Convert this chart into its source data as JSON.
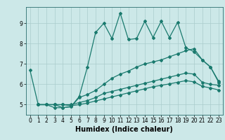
{
  "xlabel": "Humidex (Indice chaleur)",
  "ylabel": "",
  "xlim": [
    -0.5,
    23.5
  ],
  "ylim": [
    4.5,
    9.8
  ],
  "bg_color": "#cce8e8",
  "grid_color": "#aacccc",
  "line_color": "#1a7a6e",
  "xticks": [
    0,
    1,
    2,
    3,
    4,
    5,
    6,
    7,
    8,
    9,
    10,
    11,
    12,
    13,
    14,
    15,
    16,
    17,
    18,
    19,
    20,
    21,
    22,
    23
  ],
  "yticks": [
    5,
    6,
    7,
    8,
    9
  ],
  "line1_x": [
    0,
    1,
    2,
    3,
    4,
    5,
    6,
    7,
    8,
    9,
    10,
    11,
    12,
    13,
    14,
    15,
    16,
    17,
    18,
    19,
    20,
    21,
    22,
    23
  ],
  "line1_y": [
    6.7,
    5.0,
    5.0,
    4.85,
    4.85,
    4.9,
    5.4,
    6.85,
    8.55,
    9.0,
    8.25,
    9.5,
    8.2,
    8.25,
    9.1,
    8.3,
    9.1,
    8.3,
    9.05,
    7.8,
    7.6,
    7.2,
    6.85,
    6.15
  ],
  "line2_x": [
    1,
    3,
    4,
    5,
    6,
    7,
    8,
    9,
    10,
    11,
    12,
    13,
    14,
    15,
    16,
    17,
    18,
    19,
    20,
    21,
    22,
    23
  ],
  "line2_y": [
    5.0,
    5.0,
    4.85,
    4.9,
    5.35,
    5.5,
    5.7,
    6.0,
    6.3,
    6.5,
    6.65,
    6.85,
    7.0,
    7.1,
    7.2,
    7.35,
    7.5,
    7.65,
    7.75,
    7.2,
    6.85,
    6.1
  ],
  "line3_x": [
    1,
    2,
    3,
    4,
    5,
    6,
    7,
    8,
    9,
    10,
    11,
    12,
    13,
    14,
    15,
    16,
    17,
    18,
    19,
    20,
    21,
    22,
    23
  ],
  "line3_y": [
    5.0,
    5.0,
    5.0,
    5.0,
    5.0,
    5.1,
    5.2,
    5.35,
    5.55,
    5.65,
    5.75,
    5.85,
    5.95,
    6.05,
    6.15,
    6.25,
    6.35,
    6.45,
    6.55,
    6.5,
    6.1,
    6.0,
    5.95
  ],
  "line4_x": [
    1,
    2,
    3,
    4,
    5,
    6,
    7,
    8,
    9,
    10,
    11,
    12,
    13,
    14,
    15,
    16,
    17,
    18,
    19,
    20,
    21,
    22,
    23
  ],
  "line4_y": [
    5.0,
    5.0,
    5.0,
    5.0,
    4.95,
    5.0,
    5.08,
    5.18,
    5.28,
    5.38,
    5.48,
    5.58,
    5.68,
    5.78,
    5.88,
    5.95,
    6.02,
    6.1,
    6.18,
    6.12,
    5.9,
    5.82,
    5.72
  ],
  "marker": "D",
  "markersize": 2.0,
  "linewidth": 0.9,
  "axis_fontsize": 7,
  "tick_fontsize": 5.5
}
